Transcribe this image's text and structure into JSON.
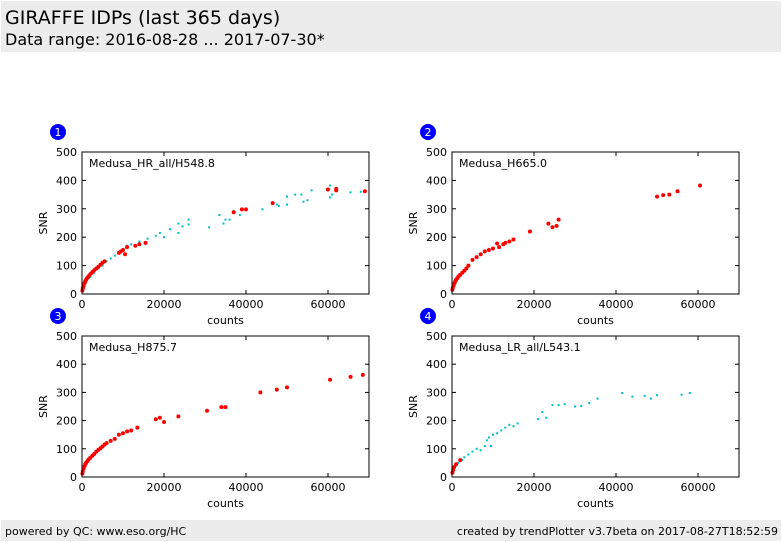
{
  "header": {
    "title": "GIRAFFE IDPs (last 365 days)",
    "range": "Data range: 2016-08-28 ... 2017-07-30*"
  },
  "footer": {
    "left": "powered by QC: www.eso.org/HC",
    "right": "created by trendPlotter v3.7beta on 2017-08-27T18:52:59"
  },
  "colors": {
    "red": "#ff0000",
    "cyan": "#00bfbf",
    "badge": "#0000ff"
  },
  "chart_data": [
    {
      "type": "scatter",
      "badge": "1",
      "title": "Medusa_HR_all/H548.8",
      "xlabel": "counts",
      "ylabel": "SNR",
      "xlim": [
        0,
        70000
      ],
      "ylim": [
        0,
        500
      ],
      "xticks": [
        "0",
        "20000",
        "40000",
        "60000"
      ],
      "yticks": [
        "0",
        "100",
        "200",
        "300",
        "400",
        "500"
      ],
      "series": [
        {
          "name": "cyan",
          "color": "#00bfbf",
          "points": [
            [
              1000,
              40
            ],
            [
              2000,
              60
            ],
            [
              3000,
              75
            ],
            [
              4000,
              90
            ],
            [
              5000,
              100
            ],
            [
              6000,
              115
            ],
            [
              7000,
              125
            ],
            [
              8000,
              135
            ],
            [
              9000,
              148
            ],
            [
              10000,
              158
            ],
            [
              11000,
              170
            ],
            [
              12000,
              175
            ],
            [
              14000,
              185
            ],
            [
              16000,
              195
            ],
            [
              18000,
              205
            ],
            [
              19000,
              215
            ],
            [
              20000,
              200
            ],
            [
              21500,
              228
            ],
            [
              23500,
              215
            ],
            [
              23500,
              248
            ],
            [
              24500,
              238
            ],
            [
              26000,
              245
            ],
            [
              26000,
              262
            ],
            [
              31000,
              235
            ],
            [
              33500,
              278
            ],
            [
              34500,
              248
            ],
            [
              35000,
              262
            ],
            [
              36000,
              262
            ],
            [
              37000,
              292
            ],
            [
              38500,
              278
            ],
            [
              44000,
              298
            ],
            [
              47500,
              315
            ],
            [
              48000,
              310
            ],
            [
              50000,
              315
            ],
            [
              50000,
              343
            ],
            [
              52000,
              350
            ],
            [
              53500,
              350
            ],
            [
              54000,
              325
            ],
            [
              55000,
              330
            ],
            [
              56000,
              365
            ],
            [
              60500,
              340
            ],
            [
              60500,
              382
            ],
            [
              61000,
              350
            ],
            [
              65500,
              358
            ],
            [
              68000,
              360
            ]
          ]
        },
        {
          "name": "red",
          "color": "#ff0000",
          "points": [
            [
              100,
              12
            ],
            [
              200,
              20
            ],
            [
              300,
              26
            ],
            [
              400,
              30
            ],
            [
              600,
              38
            ],
            [
              800,
              45
            ],
            [
              1000,
              50
            ],
            [
              1200,
              55
            ],
            [
              1500,
              60
            ],
            [
              1800,
              66
            ],
            [
              2200,
              72
            ],
            [
              2600,
              78
            ],
            [
              3000,
              84
            ],
            [
              3500,
              90
            ],
            [
              4000,
              96
            ],
            [
              4500,
              103
            ],
            [
              5000,
              110
            ],
            [
              5500,
              115
            ],
            [
              9000,
              145
            ],
            [
              9500,
              150
            ],
            [
              10000,
              155
            ],
            [
              10500,
              140
            ],
            [
              11000,
              165
            ],
            [
              13000,
              170
            ],
            [
              14000,
              175
            ],
            [
              15500,
              180
            ],
            [
              37000,
              288
            ],
            [
              39000,
              298
            ],
            [
              40000,
              298
            ],
            [
              46500,
              320
            ],
            [
              60000,
              368
            ],
            [
              62000,
              365
            ],
            [
              62000,
              370
            ],
            [
              69000,
              362
            ]
          ]
        }
      ]
    },
    {
      "type": "scatter",
      "badge": "2",
      "title": "Medusa_H665.0",
      "xlabel": "counts",
      "ylabel": "SNR",
      "xlim": [
        0,
        70000
      ],
      "ylim": [
        0,
        500
      ],
      "xticks": [
        "0",
        "20000",
        "40000",
        "60000"
      ],
      "yticks": [
        "0",
        "100",
        "200",
        "300",
        "400",
        "500"
      ],
      "series": [
        {
          "name": "red",
          "color": "#ff0000",
          "points": [
            [
              100,
              15
            ],
            [
              200,
              22
            ],
            [
              400,
              30
            ],
            [
              600,
              38
            ],
            [
              800,
              45
            ],
            [
              1000,
              50
            ],
            [
              1300,
              56
            ],
            [
              1600,
              62
            ],
            [
              2000,
              68
            ],
            [
              2500,
              75
            ],
            [
              3000,
              82
            ],
            [
              3500,
              90
            ],
            [
              4000,
              100
            ],
            [
              5000,
              120
            ],
            [
              6000,
              130
            ],
            [
              7000,
              140
            ],
            [
              8000,
              150
            ],
            [
              9000,
              155
            ],
            [
              10000,
              160
            ],
            [
              11000,
              178
            ],
            [
              11500,
              165
            ],
            [
              12500,
              175
            ],
            [
              13000,
              180
            ],
            [
              14000,
              185
            ],
            [
              15000,
              192
            ],
            [
              19000,
              220
            ],
            [
              23500,
              248
            ],
            [
              24500,
              235
            ],
            [
              25500,
              240
            ],
            [
              26000,
              262
            ],
            [
              50000,
              343
            ],
            [
              51500,
              348
            ],
            [
              53000,
              350
            ],
            [
              55000,
              362
            ],
            [
              60500,
              382
            ]
          ]
        }
      ]
    },
    {
      "type": "scatter",
      "badge": "3",
      "title": "Medusa_H875.7",
      "xlabel": "counts",
      "ylabel": "SNR",
      "xlim": [
        0,
        70000
      ],
      "ylim": [
        0,
        500
      ],
      "xticks": [
        "0",
        "20000",
        "40000",
        "60000"
      ],
      "yticks": [
        "0",
        "100",
        "200",
        "300",
        "400",
        "500"
      ],
      "series": [
        {
          "name": "red",
          "color": "#ff0000",
          "points": [
            [
              100,
              12
            ],
            [
              200,
              20
            ],
            [
              400,
              30
            ],
            [
              600,
              38
            ],
            [
              800,
              45
            ],
            [
              1000,
              50
            ],
            [
              1300,
              56
            ],
            [
              1600,
              62
            ],
            [
              2000,
              68
            ],
            [
              2500,
              75
            ],
            [
              3000,
              82
            ],
            [
              3500,
              90
            ],
            [
              4000,
              96
            ],
            [
              4500,
              102
            ],
            [
              5000,
              108
            ],
            [
              5500,
              115
            ],
            [
              6000,
              120
            ],
            [
              7000,
              128
            ],
            [
              8000,
              135
            ],
            [
              9000,
              150
            ],
            [
              10000,
              155
            ],
            [
              11000,
              162
            ],
            [
              12000,
              165
            ],
            [
              13500,
              175
            ],
            [
              18000,
              205
            ],
            [
              19000,
              210
            ],
            [
              20000,
              195
            ],
            [
              23500,
              215
            ],
            [
              30500,
              235
            ],
            [
              34000,
              248
            ],
            [
              35000,
              248
            ],
            [
              43500,
              300
            ],
            [
              47500,
              310
            ],
            [
              50000,
              318
            ],
            [
              60500,
              345
            ],
            [
              65500,
              355
            ],
            [
              68500,
              362
            ]
          ]
        }
      ]
    },
    {
      "type": "scatter",
      "badge": "4",
      "title": "Medusa_LR_all/L543.1",
      "xlabel": "counts",
      "ylabel": "SNR",
      "xlim": [
        0,
        70000
      ],
      "ylim": [
        0,
        500
      ],
      "xticks": [
        "0",
        "20000",
        "40000",
        "60000"
      ],
      "yticks": [
        "0",
        "100",
        "200",
        "300",
        "400",
        "500"
      ],
      "series": [
        {
          "name": "cyan",
          "color": "#00bfbf",
          "points": [
            [
              500,
              30
            ],
            [
              1000,
              40
            ],
            [
              1500,
              50
            ],
            [
              2500,
              60
            ],
            [
              3000,
              70
            ],
            [
              4000,
              80
            ],
            [
              5000,
              90
            ],
            [
              6000,
              100
            ],
            [
              7000,
              95
            ],
            [
              8000,
              110
            ],
            [
              8500,
              130
            ],
            [
              9000,
              140
            ],
            [
              9500,
              110
            ],
            [
              10000,
              150
            ],
            [
              11000,
              155
            ],
            [
              12000,
              165
            ],
            [
              13000,
              175
            ],
            [
              14000,
              185
            ],
            [
              15000,
              180
            ],
            [
              16000,
              190
            ],
            [
              21000,
              205
            ],
            [
              22000,
              230
            ],
            [
              23000,
              210
            ],
            [
              24500,
              255
            ],
            [
              26000,
              255
            ],
            [
              27500,
              258
            ],
            [
              30000,
              250
            ],
            [
              31500,
              252
            ],
            [
              33500,
              262
            ],
            [
              35500,
              278
            ],
            [
              41500,
              298
            ],
            [
              44000,
              285
            ],
            [
              47000,
              288
            ],
            [
              48500,
              278
            ],
            [
              50000,
              290
            ],
            [
              56000,
              292
            ],
            [
              58000,
              298
            ]
          ]
        },
        {
          "name": "red",
          "color": "#ff0000",
          "points": [
            [
              100,
              15
            ],
            [
              300,
              25
            ],
            [
              500,
              35
            ],
            [
              1000,
              45
            ],
            [
              2000,
              60
            ]
          ]
        }
      ]
    }
  ]
}
